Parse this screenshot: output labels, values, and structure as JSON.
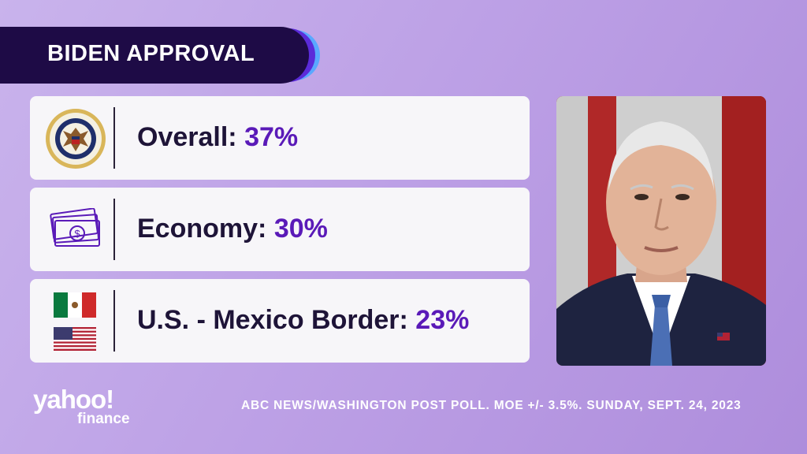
{
  "title": "BIDEN APPROVAL",
  "rows": [
    {
      "label": "Overall:",
      "value": "37%",
      "icon": "presidential-seal-icon"
    },
    {
      "label": "Economy:",
      "value": "30%",
      "icon": "money-icon"
    },
    {
      "label": "U.S. - Mexico Border:",
      "value": "23%",
      "icon": "mexico-us-flags-icon"
    }
  ],
  "footer": {
    "source": "ABC NEWS/WASHINGTON POST POLL. MOE +/- 3.5%. SUNDAY, SEPT. 24, 2023"
  },
  "logo": {
    "main": "yahoo!",
    "sub": "finance"
  },
  "colors": {
    "accent": "#5a1ab8",
    "title_bar": "#1e0b46",
    "background": "#bda1e6"
  }
}
